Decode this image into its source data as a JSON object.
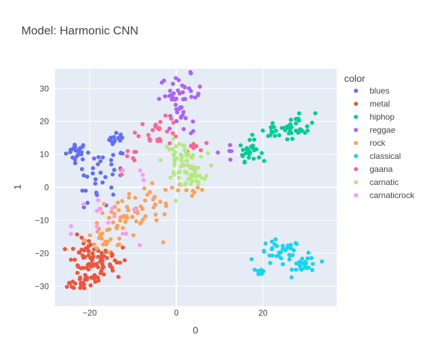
{
  "chart_data": {
    "type": "scatter",
    "title": "Model: Harmonic CNN",
    "xlabel": "0",
    "ylabel": "1",
    "xlim": [
      -28,
      37
    ],
    "ylim": [
      -36,
      36
    ],
    "xticks": [
      -20,
      0,
      20
    ],
    "yticks": [
      -30,
      -20,
      -10,
      0,
      10,
      20,
      30
    ],
    "grid": true,
    "legend": {
      "title": "color",
      "placement": "right"
    },
    "series": [
      {
        "name": "blues",
        "color": "#636efa",
        "clusters": [
          {
            "cx": -23,
            "cy": 11,
            "sx": 1.2,
            "sy": 1.4,
            "n": 22
          },
          {
            "cx": -13.5,
            "cy": 14.5,
            "sx": 1.0,
            "sy": 1.0,
            "n": 16
          },
          {
            "cx": -17,
            "cy": 6,
            "sx": 2.8,
            "sy": 3.0,
            "n": 26
          },
          {
            "cx": -19,
            "cy": -3,
            "sx": 2.5,
            "sy": 2.5,
            "n": 10
          }
        ]
      },
      {
        "name": "metal",
        "color": "#EF553B",
        "clusters": [
          {
            "cx": -20,
            "cy": -23,
            "sx": 2.5,
            "sy": 4.0,
            "n": 80
          },
          {
            "cx": -22,
            "cy": -29.5,
            "sx": 1.5,
            "sy": 0.8,
            "n": 12
          },
          {
            "cx": -15,
            "cy": -22,
            "sx": 1.8,
            "sy": 2.5,
            "n": 14
          }
        ]
      },
      {
        "name": "hiphop",
        "color": "#00cc96",
        "clusters": [
          {
            "cx": 17,
            "cy": 11,
            "sx": 1.2,
            "sy": 1.5,
            "n": 28
          },
          {
            "cx": 22,
            "cy": 17,
            "sx": 2.2,
            "sy": 1.5,
            "n": 18
          },
          {
            "cx": 28,
            "cy": 19,
            "sx": 2.0,
            "sy": 2.0,
            "n": 26
          }
        ]
      },
      {
        "name": "reggae",
        "color": "#ab63fa",
        "clusters": [
          {
            "cx": 1,
            "cy": 28,
            "sx": 2.5,
            "sy": 3.0,
            "n": 40
          },
          {
            "cx": 2,
            "cy": 20,
            "sx": 2.0,
            "sy": 2.0,
            "n": 10
          },
          {
            "cx": 12,
            "cy": 11,
            "sx": 1.5,
            "sy": 1.5,
            "n": 5
          }
        ]
      },
      {
        "name": "rock",
        "color": "#FFA15A",
        "clusters": [
          {
            "cx": -12,
            "cy": -9,
            "sx": 4.0,
            "sy": 3.0,
            "n": 50
          },
          {
            "cx": -16,
            "cy": -16,
            "sx": 2.5,
            "sy": 2.5,
            "n": 20
          },
          {
            "cx": -5,
            "cy": -4,
            "sx": 2.5,
            "sy": 2.5,
            "n": 15
          },
          {
            "cx": 2,
            "cy": -2,
            "sx": 2.5,
            "sy": 1.5,
            "n": 8
          }
        ]
      },
      {
        "name": "classical",
        "color": "#19d3f3",
        "clusters": [
          {
            "cx": 24,
            "cy": -20,
            "sx": 2.5,
            "sy": 2.0,
            "n": 35
          },
          {
            "cx": 30,
            "cy": -23.5,
            "sx": 1.5,
            "sy": 1.5,
            "n": 25
          },
          {
            "cx": 19.5,
            "cy": -25.5,
            "sx": 0.5,
            "sy": 0.5,
            "n": 7
          }
        ]
      },
      {
        "name": "gaana",
        "color": "#FF6692",
        "clusters": [
          {
            "cx": -4,
            "cy": 17,
            "sx": 2.5,
            "sy": 2.0,
            "n": 25
          },
          {
            "cx": 5,
            "cy": 13,
            "sx": 1.5,
            "sy": 1.0,
            "n": 8
          },
          {
            "cx": -10,
            "cy": 8,
            "sx": 2.0,
            "sy": 2.0,
            "n": 8
          }
        ]
      },
      {
        "name": "carnatic",
        "color": "#B6E880",
        "clusters": [
          {
            "cx": 1,
            "cy": 8,
            "sx": 2.0,
            "sy": 3.0,
            "n": 60
          },
          {
            "cx": 4,
            "cy": 3,
            "sx": 2.0,
            "sy": 1.8,
            "n": 20
          }
        ]
      },
      {
        "name": "carnaticrock",
        "color": "#FF97FF",
        "clusters": [
          {
            "cx": -16,
            "cy": -12,
            "sx": 4.0,
            "sy": 6.0,
            "n": 14
          },
          {
            "cx": -9,
            "cy": 4,
            "sx": 2.0,
            "sy": 1.0,
            "n": 4
          }
        ]
      }
    ]
  }
}
